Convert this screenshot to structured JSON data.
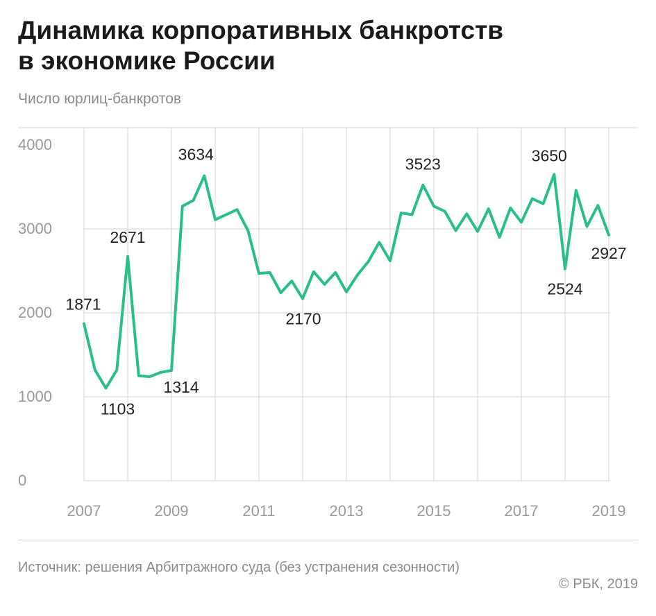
{
  "header": {
    "title_line1": "Динамика корпоративных банкротств",
    "title_line2": "в экономике России",
    "subtitle": "Число юрлиц-банкротов"
  },
  "footer": {
    "source": "Источник: решения Арбитражного суда (без устранения сезонности)",
    "copyright": "© РБК, 2019"
  },
  "colors": {
    "line": "#2bbf88",
    "grid": "#d6d6d6",
    "axis_text": "#9a9a9a",
    "label_text": "#222222"
  },
  "chart_data": {
    "type": "line",
    "title": "Динамика корпоративных банкротств в экономике России",
    "ylabel": "Число юрлиц-банкротов",
    "xlabel": "",
    "ylim": [
      0,
      4000
    ],
    "y_ticks": [
      0,
      1000,
      2000,
      3000,
      4000
    ],
    "x_ticks": [
      "2007",
      "2009",
      "2011",
      "2013",
      "2015",
      "2017",
      "2019"
    ],
    "grid": true,
    "series": [
      {
        "values": [
          1871,
          1320,
          1103,
          1320,
          2671,
          1250,
          1240,
          1290,
          1314,
          3270,
          3340,
          3634,
          3110,
          3170,
          3230,
          2980,
          2470,
          2480,
          2240,
          2380,
          2170,
          2490,
          2340,
          2480,
          2250,
          2450,
          2610,
          2840,
          2620,
          3190,
          3170,
          3523,
          3270,
          3210,
          2980,
          3180,
          2970,
          3240,
          2900,
          3250,
          3080,
          3360,
          3300,
          3650,
          2524,
          3460,
          3030,
          3280,
          2927
        ]
      }
    ],
    "annotations": [
      {
        "index": 0,
        "value": 1871,
        "label": "1871"
      },
      {
        "index": 2,
        "value": 1103,
        "label": "1103"
      },
      {
        "index": 4,
        "value": 2671,
        "label": "2671"
      },
      {
        "index": 8,
        "value": 1314,
        "label": "1314"
      },
      {
        "index": 11,
        "value": 3634,
        "label": "3634"
      },
      {
        "index": 20,
        "value": 2170,
        "label": "2170"
      },
      {
        "index": 31,
        "value": 3523,
        "label": "3523"
      },
      {
        "index": 43,
        "value": 3650,
        "label": "3650"
      },
      {
        "index": 44,
        "value": 2524,
        "label": "2524"
      },
      {
        "index": 48,
        "value": 2927,
        "label": "2927"
      }
    ]
  }
}
